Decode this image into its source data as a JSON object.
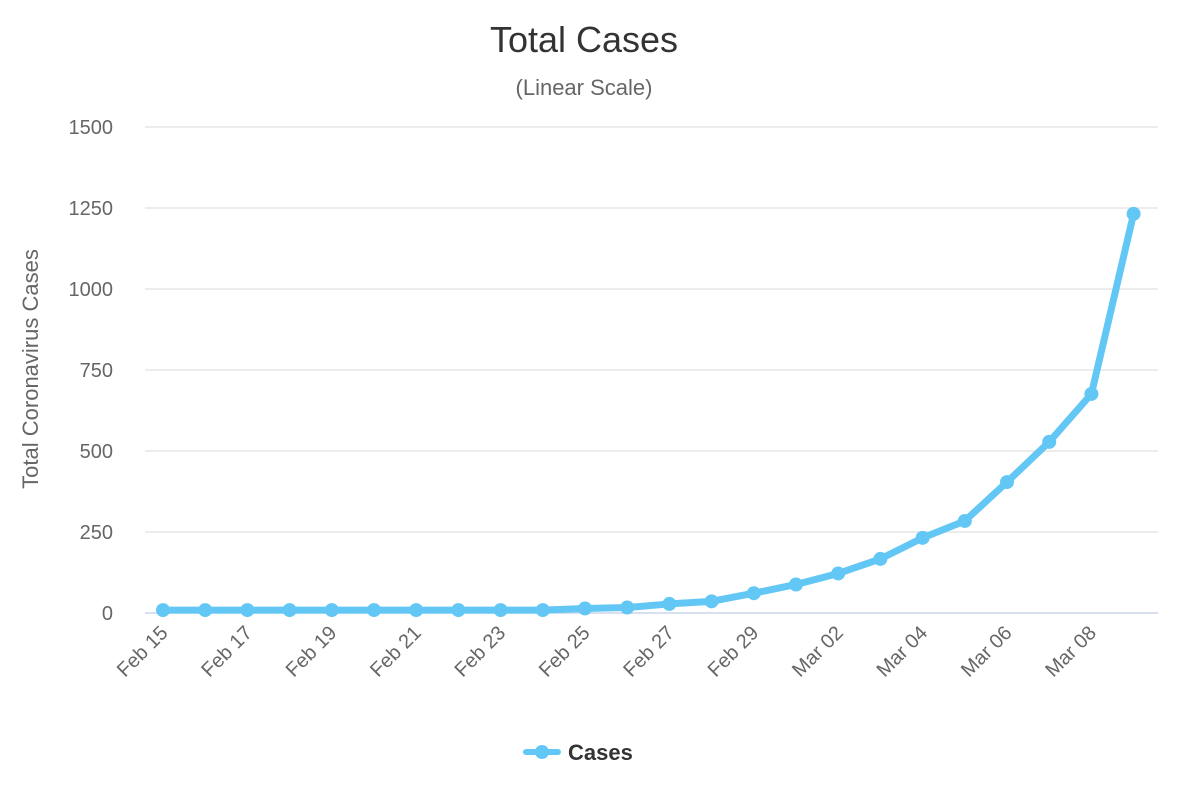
{
  "chart_data": {
    "type": "line",
    "title": "Total Cases",
    "subtitle": "(Linear Scale)",
    "xlabel": "",
    "ylabel": "Total Coronavirus Cases",
    "ylim": [
      0,
      1500
    ],
    "yticks": [
      0,
      250,
      500,
      750,
      1000,
      1250,
      1500
    ],
    "x": [
      "Feb 15",
      "Feb 16",
      "Feb 17",
      "Feb 18",
      "Feb 19",
      "Feb 20",
      "Feb 21",
      "Feb 22",
      "Feb 23",
      "Feb 24",
      "Feb 25",
      "Feb 26",
      "Feb 27",
      "Feb 28",
      "Feb 29",
      "Mar 01",
      "Mar 02",
      "Mar 03",
      "Mar 04",
      "Mar 05",
      "Mar 06",
      "Mar 07",
      "Mar 08",
      "Mar 09"
    ],
    "xtick_labels": [
      "Feb 15",
      "Feb 17",
      "Feb 19",
      "Feb 21",
      "Feb 23",
      "Feb 25",
      "Feb 27",
      "Feb 29",
      "Mar 02",
      "Mar 04",
      "Mar 06",
      "Mar 08"
    ],
    "series": [
      {
        "name": "Cases",
        "color": "#63c7f5",
        "values": [
          9,
          9,
          9,
          9,
          9,
          9,
          9,
          9,
          9,
          9,
          14,
          17,
          28,
          36,
          61,
          88,
          122,
          167,
          232,
          284,
          404,
          528,
          676,
          1232
        ]
      }
    ],
    "grid": true,
    "legend": "bottom-center"
  }
}
